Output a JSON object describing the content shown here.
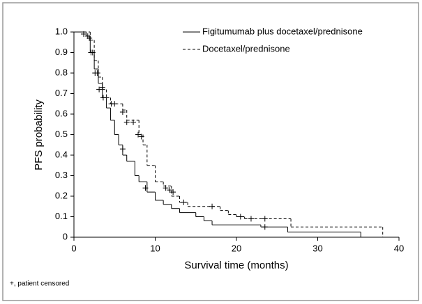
{
  "chart_data": {
    "type": "line",
    "step": "post",
    "xlabel": "Survival time (months)",
    "ylabel": "PFS probability",
    "xlim": [
      0,
      40
    ],
    "xticks": [
      0,
      10,
      20,
      30,
      40
    ],
    "ylim": [
      0,
      1
    ],
    "yticks": [
      0,
      0.1,
      0.2,
      0.3,
      0.4,
      0.5,
      0.6,
      0.7,
      0.8,
      0.9,
      {
        "value": 1,
        "label": "1.0"
      }
    ],
    "legend": "top-right",
    "footnote": "+, patient censored",
    "series": [
      {
        "name": "Figitumumab plus docetaxel/prednisone",
        "color": "#000000",
        "line_style": "solid",
        "x": [
          0,
          1.5,
          2,
          2.5,
          3,
          3.5,
          4,
          4.5,
          5,
          5.5,
          6,
          6.5,
          7.5,
          8,
          9,
          10,
          11,
          12,
          13,
          15,
          16,
          17,
          23,
          26.3,
          35.3
        ],
        "values": [
          1,
          0.98,
          0.9,
          0.82,
          0.75,
          0.68,
          0.63,
          0.57,
          0.5,
          0.45,
          0.4,
          0.37,
          0.3,
          0.27,
          0.22,
          0.18,
          0.16,
          0.14,
          0.12,
          0.1,
          0.08,
          0.06,
          0.05,
          0.025,
          0
        ],
        "censored_x": [
          1.7,
          2.1,
          2.6,
          3.1,
          3.6,
          6,
          8.8,
          23.5
        ],
        "censored_values": [
          0.98,
          0.9,
          0.8,
          0.72,
          0.68,
          0.43,
          0.24,
          0.05
        ]
      },
      {
        "name": "Docetaxel/prednisone",
        "color": "#000000",
        "line_style": "dashed",
        "x": [
          0,
          2,
          2.5,
          3,
          3.5,
          4,
          4.5,
          6,
          6.5,
          8,
          8.5,
          9,
          10,
          11,
          12,
          13,
          14,
          18,
          19,
          20,
          21,
          26.7,
          38
        ],
        "values": [
          1,
          0.96,
          0.86,
          0.78,
          0.72,
          0.68,
          0.65,
          0.62,
          0.57,
          0.5,
          0.45,
          0.35,
          0.27,
          0.25,
          0.2,
          0.17,
          0.15,
          0.13,
          0.11,
          0.1,
          0.09,
          0.05,
          0
        ],
        "censored_x": [
          1.2,
          1.9,
          2.3,
          2.9,
          3.5,
          4.6,
          5,
          6,
          6.5,
          7.3,
          7.9,
          8.3,
          11.3,
          11.8,
          12.2,
          13.5,
          17,
          20.5,
          21.8,
          23.5
        ],
        "censored_values": [
          0.99,
          0.97,
          0.9,
          0.8,
          0.73,
          0.65,
          0.65,
          0.61,
          0.56,
          0.56,
          0.5,
          0.49,
          0.24,
          0.23,
          0.22,
          0.17,
          0.15,
          0.1,
          0.09,
          0.09
        ]
      }
    ]
  }
}
